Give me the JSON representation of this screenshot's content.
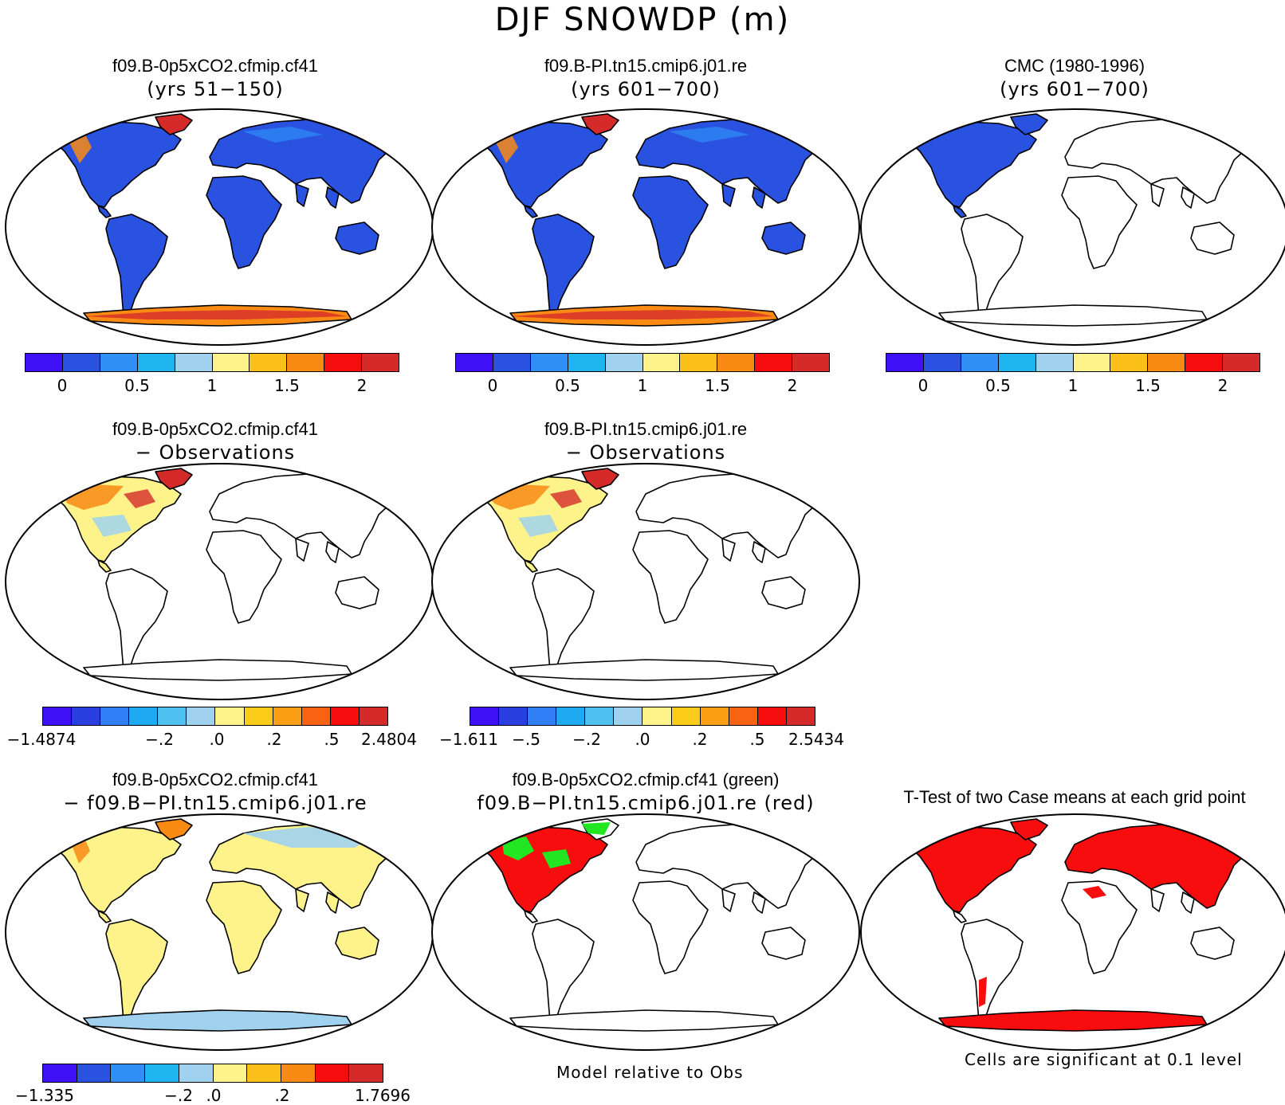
{
  "title": "DJF SNOWDP (m)",
  "panels": [
    {
      "title1": "f09.B-0p5xCO2.cfmip.cf41",
      "title2": "(yrs 51−150)"
    },
    {
      "title1": "f09.B-PI.tn15.cmip6.j01.re",
      "title2": "(yrs 601−700)"
    },
    {
      "title1": "CMC (1980-1996)",
      "title2": "(yrs 601−700)"
    },
    {
      "title1": "f09.B-0p5xCO2.cfmip.cf41",
      "title2": "− Observations"
    },
    {
      "title1": "f09.B-PI.tn15.cmip6.j01.re",
      "title2": "− Observations"
    },
    {
      "title1": "f09.B-0p5xCO2.cfmip.cf41",
      "title2": "−  f09.B−PI.tn15.cmip6.j01.re"
    },
    {
      "title1": "f09.B-0p5xCO2.cfmip.cf41 (green)",
      "title2": "f09.B−PI.tn15.cmip6.j01.re (red)"
    },
    {
      "title1": "T-Test of two Case means at each grid point",
      "title2": ""
    }
  ],
  "colorbars": {
    "abs_colors": [
      "#3d10f5",
      "#2a52e0",
      "#2f8ff5",
      "#1eb4f0",
      "#a0d2ef",
      "#fdf38a",
      "#fbbf1a",
      "#f98a14",
      "#f70d0d",
      "#d42a2a"
    ],
    "diff_colors": [
      "#3d10f5",
      "#2a3fe0",
      "#2f7ef5",
      "#1eaaf0",
      "#4ec1f0",
      "#a0d2ef",
      "#fdf38a",
      "#fbcc1a",
      "#fb9f14",
      "#f86212",
      "#f70d0d",
      "#d42a2a"
    ],
    "ttest_colors": [
      "#3d10f5",
      "#2a52e0",
      "#2f8ff5",
      "#1eb4f0",
      "#a0d2ef",
      "#fdf38a",
      "#fbbf1a",
      "#f98a14",
      "#f70d0d",
      "#d42a2a"
    ],
    "abs_ticks": [
      "0",
      "0.5",
      "1",
      "1.5",
      "2"
    ],
    "diff1_ticks": [
      "−1.4874",
      "−.2",
      ".0",
      ".2",
      ".5",
      "2.4804"
    ],
    "diff2_ticks": [
      "−1.611",
      "−.5",
      "−.2",
      ".0",
      ".2",
      ".5",
      "2.5434"
    ],
    "diff3_ticks": [
      "−1.335",
      "−.2",
      ".0",
      ".2",
      "1.7696"
    ]
  },
  "map_colors": {
    "ocean": "#ffffff",
    "land_outline": "#000000",
    "snow_blue": "#2a52e0",
    "snow_light": "#2f8ff5",
    "snow_red": "#d42a2a",
    "snow_orange": "#f98a14",
    "diff_yellow": "#fdf38a",
    "diff_lightblue": "#a0d2ef",
    "sig_red": "#f70d0d",
    "green": "#22e622"
  },
  "notes": {
    "model_rel": "Model relative to Obs",
    "cells_sig": "Cells are significant at 0.1 level"
  }
}
